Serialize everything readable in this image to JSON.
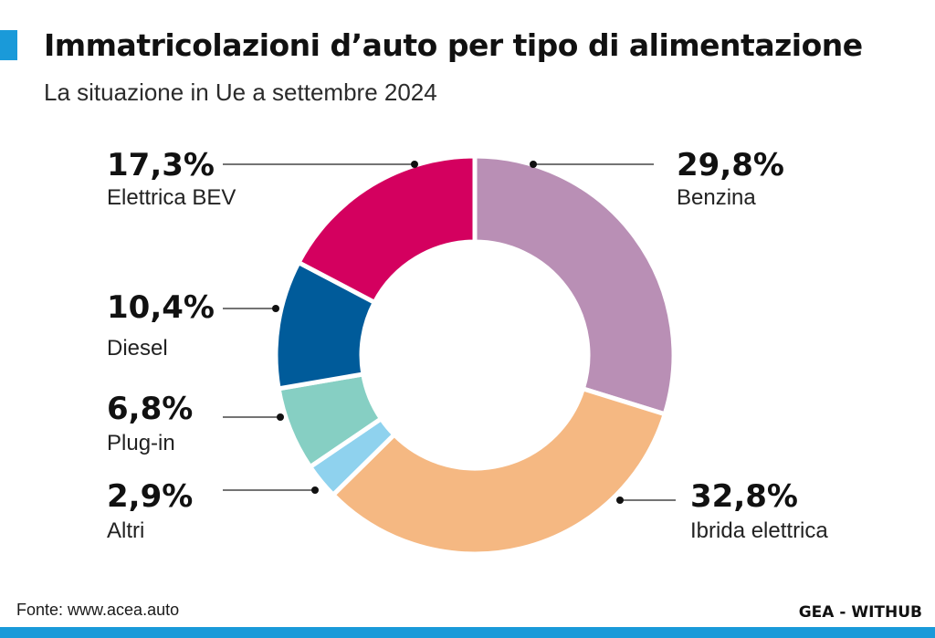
{
  "header": {
    "title": "Immatricolazioni d’auto per tipo di alimentazione",
    "subtitle": "La situazione in Ue a settembre 2024"
  },
  "footer": {
    "source": "Fonte: www.acea.auto",
    "credit": "GEA - WITHUB"
  },
  "colors": {
    "accent": "#1a9ad9"
  },
  "chart_data": {
    "type": "pie",
    "donut": true,
    "unit": "%",
    "slices": [
      {
        "label": "Benzina",
        "value": 29.8,
        "value_label": "29,8%",
        "color": "#b98fb5"
      },
      {
        "label": "Ibrida elettrica",
        "value": 32.8,
        "value_label": "32,8%",
        "color": "#f5b882"
      },
      {
        "label": "Altri",
        "value": 2.9,
        "value_label": "2,9%",
        "color": "#8fd2ee"
      },
      {
        "label": "Plug-in",
        "value": 6.8,
        "value_label": "6,8%",
        "color": "#86cfc3"
      },
      {
        "label": "Diesel",
        "value": 10.4,
        "value_label": "10,4%",
        "color": "#005b9a"
      },
      {
        "label": "Elettrica BEV",
        "value": 17.3,
        "value_label": "17,3%",
        "color": "#d4005f"
      }
    ]
  }
}
